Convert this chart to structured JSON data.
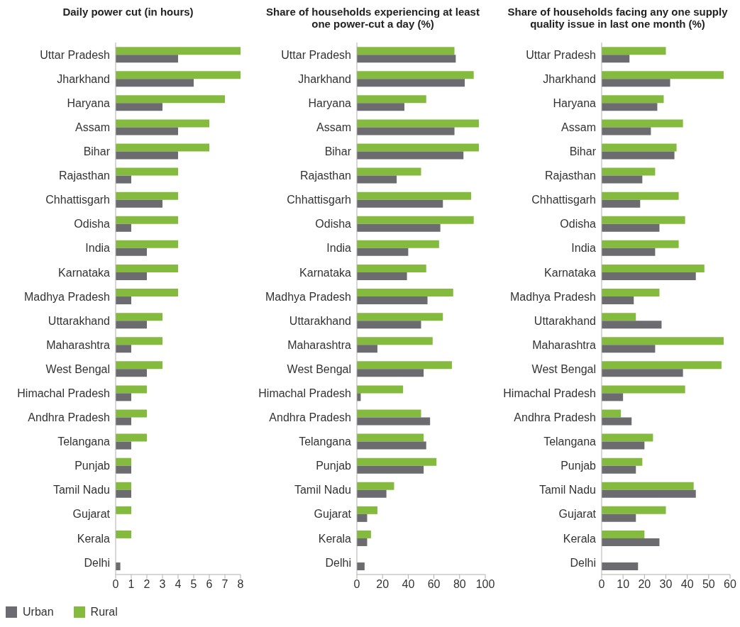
{
  "chart_data": [
    {
      "type": "bar",
      "orientation": "horizontal",
      "title": "Daily power cut (in hours)",
      "categories": [
        "Uttar Pradesh",
        "Jharkhand",
        "Haryana",
        "Assam",
        "Bihar",
        "Rajasthan",
        "Chhattisgarh",
        "Odisha",
        "India",
        "Karnataka",
        "Madhya Pradesh",
        "Uttarakhand",
        "Maharashtra",
        "West Bengal",
        "Himachal Pradesh",
        "Andhra Pradesh",
        "Telangana",
        "Punjab",
        "Tamil Nadu",
        "Gujarat",
        "Kerala",
        "Delhi"
      ],
      "series": [
        {
          "name": "Urban",
          "color": "#6b6b70",
          "values": [
            4,
            5,
            3,
            4,
            4,
            1,
            3,
            1,
            2,
            2,
            1,
            2,
            1,
            2,
            1,
            1,
            1,
            1,
            1,
            0,
            0,
            0.3
          ]
        },
        {
          "name": "Rural",
          "color": "#84bb3f",
          "values": [
            8,
            8,
            7,
            6,
            6,
            4,
            4,
            4,
            4,
            4,
            4,
            3,
            3,
            3,
            2,
            2,
            2,
            1,
            1,
            1,
            1,
            null
          ]
        }
      ],
      "xlim": [
        0,
        8
      ],
      "xticks": [
        0,
        1,
        2,
        3,
        4,
        5,
        6,
        7,
        8
      ],
      "legend": "bottom left"
    },
    {
      "type": "bar",
      "orientation": "horizontal",
      "title": "Share of households experiencing at least one power-cut a day (%)",
      "categories": [
        "Uttar Pradesh",
        "Jharkhand",
        "Haryana",
        "Assam",
        "Bihar",
        "Rajasthan",
        "Chhattisgarh",
        "Odisha",
        "India",
        "Karnataka",
        "Madhya Pradesh",
        "Uttarakhand",
        "Maharashtra",
        "West Bengal",
        "Himachal Pradesh",
        "Andhra Pradesh",
        "Telangana",
        "Punjab",
        "Tamil Nadu",
        "Gujarat",
        "Kerala",
        "Delhi"
      ],
      "series": [
        {
          "color": "#6b6b70",
          "values": [
            77,
            84,
            37,
            76,
            83,
            31,
            67,
            65,
            40,
            39,
            55,
            50,
            16,
            52,
            3,
            57,
            54,
            52,
            23,
            8,
            8,
            6
          ]
        },
        {
          "color": "#84bb3f",
          "values": [
            76,
            91,
            54,
            95,
            95,
            50,
            89,
            91,
            64,
            54,
            75,
            67,
            59,
            74,
            36,
            50,
            52,
            62,
            29,
            16,
            11,
            null
          ]
        }
      ],
      "xlim": [
        0,
        100
      ],
      "xticks": [
        0,
        20,
        40,
        60,
        80,
        100
      ]
    },
    {
      "type": "bar",
      "orientation": "horizontal",
      "title": "Share of households facing any one supply quality issue in last one month (%)",
      "categories": [
        "Uttar Pradesh",
        "Jharkhand",
        "Haryana",
        "Assam",
        "Bihar",
        "Rajasthan",
        "Chhattisgarh",
        "Odisha",
        "India",
        "Karnataka",
        "Madhya Pradesh",
        "Uttarakhand",
        "Maharashtra",
        "West Bengal",
        "Himachal Pradesh",
        "Andhra Pradesh",
        "Telangana",
        "Punjab",
        "Tamil Nadu",
        "Gujarat",
        "Kerala",
        "Delhi"
      ],
      "series": [
        {
          "color": "#6b6b70",
          "values": [
            13,
            32,
            26,
            23,
            34,
            19,
            18,
            27,
            25,
            44,
            15,
            28,
            25,
            38,
            10,
            14,
            20,
            16,
            44,
            16,
            27,
            17
          ]
        },
        {
          "color": "#84bb3f",
          "values": [
            30,
            57,
            29,
            38,
            35,
            25,
            36,
            39,
            36,
            48,
            27,
            16,
            57,
            56,
            39,
            9,
            24,
            19,
            43,
            30,
            20,
            null
          ]
        }
      ],
      "xlim": [
        0,
        60
      ],
      "xticks": [
        0,
        10,
        20,
        30,
        40,
        50,
        60
      ]
    }
  ]
}
